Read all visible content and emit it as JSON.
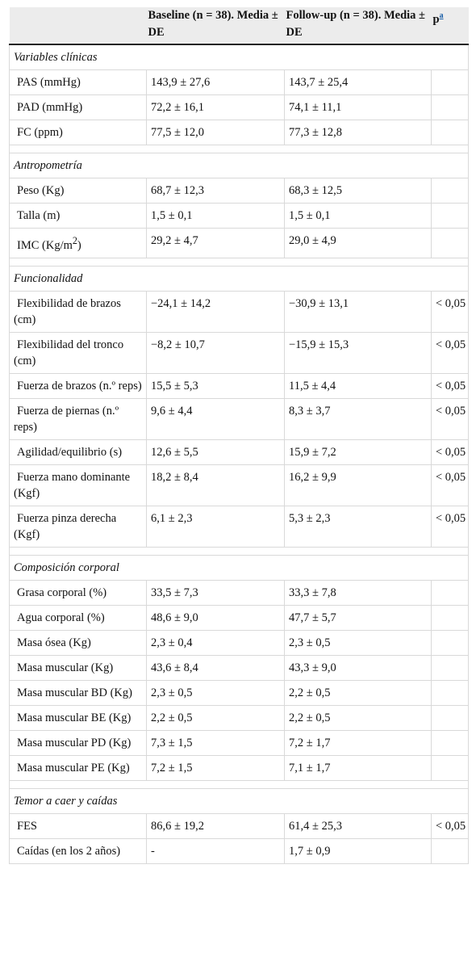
{
  "header": {
    "col1": "",
    "col2": "Baseline (n = 38). Media ± DE",
    "col3": "Follow-up (n = 38). Media ± DE",
    "col4_p": "p",
    "col4_sup": "a"
  },
  "sections": [
    {
      "title": "Variables clínicas",
      "rows": [
        {
          "label": "PAS (mmHg)",
          "baseline": "143,9 ± 27,6",
          "followup": "143,7 ± 25,4",
          "p": ""
        },
        {
          "label": "PAD (mmHg)",
          "baseline": "72,2 ± 16,1",
          "followup": "74,1 ± 11,1",
          "p": ""
        },
        {
          "label": "FC (ppm)",
          "baseline": "77,5 ± 12,0",
          "followup": "77,3 ± 12,8",
          "p": ""
        }
      ]
    },
    {
      "title": "Antropometría",
      "rows": [
        {
          "label": "Peso (Kg)",
          "baseline": "68,7 ± 12,3",
          "followup": "68,3 ± 12,5",
          "p": ""
        },
        {
          "label": "Talla (m)",
          "baseline": "1,5 ± 0,1",
          "followup": "1,5 ± 0,1",
          "p": ""
        },
        {
          "label": "IMC (Kg/m",
          "label_sup": "2",
          "label_suffix": ")",
          "baseline": "29,2 ± 4,7",
          "followup": "29,0 ± 4,9",
          "p": ""
        }
      ]
    },
    {
      "title": "Funcionalidad",
      "rows": [
        {
          "label": "Flexibilidad de brazos (cm)",
          "baseline": "−24,1 ± 14,2",
          "followup": "−30,9 ± 13,1",
          "p": "< 0,05"
        },
        {
          "label": "Flexibilidad del tronco (cm)",
          "baseline": "−8,2 ± 10,7",
          "followup": "−15,9 ± 15,3",
          "p": "< 0,05"
        },
        {
          "label": "Fuerza de brazos (n.º reps)",
          "baseline": "15,5 ± 5,3",
          "followup": "11,5 ± 4,4",
          "p": "< 0,05"
        },
        {
          "label": "Fuerza de piernas (n.º reps)",
          "baseline": "9,6 ± 4,4",
          "followup": "8,3 ± 3,7",
          "p": "< 0,05"
        },
        {
          "label": "Agilidad/equilibrio (s)",
          "baseline": "12,6 ± 5,5",
          "followup": "15,9 ± 7,2",
          "p": "< 0,05"
        },
        {
          "label": "Fuerza mano dominante (Kgf)",
          "baseline": "18,2 ± 8,4",
          "followup": "16,2 ± 9,9",
          "p": "< 0,05"
        },
        {
          "label": "Fuerza pinza derecha (Kgf)",
          "baseline": "6,1 ± 2,3",
          "followup": "5,3 ± 2,3",
          "p": "< 0,05"
        }
      ]
    },
    {
      "title": "Composición corporal",
      "rows": [
        {
          "label": "Grasa corporal (%)",
          "baseline": "33,5 ± 7,3",
          "followup": "33,3 ± 7,8",
          "p": ""
        },
        {
          "label": "Agua corporal (%)",
          "baseline": "48,6 ± 9,0",
          "followup": "47,7 ± 5,7",
          "p": ""
        },
        {
          "label": "Masa ósea (Kg)",
          "baseline": "2,3 ± 0,4",
          "followup": "2,3 ± 0,5",
          "p": ""
        },
        {
          "label": "Masa muscular (Kg)",
          "baseline": "43,6 ± 8,4",
          "followup": "43,3 ± 9,0",
          "p": ""
        },
        {
          "label": "Masa muscular BD (Kg)",
          "baseline": "2,3 ± 0,5",
          "followup": "2,2 ± 0,5",
          "p": ""
        },
        {
          "label": "Masa muscular BE (Kg)",
          "baseline": "2,2 ± 0,5",
          "followup": "2,2 ± 0,5",
          "p": ""
        },
        {
          "label": "Masa muscular PD (Kg)",
          "baseline": "7,3 ± 1,5",
          "followup": "7,2 ± 1,7",
          "p": ""
        },
        {
          "label": "Masa muscular PE (Kg)",
          "baseline": "7,2 ± 1,5",
          "followup": "7,1 ± 1,7",
          "p": ""
        }
      ]
    },
    {
      "title": "Temor a caer y caídas",
      "rows": [
        {
          "label": "FES",
          "baseline": "86,6 ± 19,2",
          "followup": "61,4 ± 25,3",
          "p": "< 0,05"
        },
        {
          "label": "Caídas (en los 2 años)",
          "baseline": "-",
          "followup": "1,7 ± 0,9",
          "p": ""
        }
      ]
    }
  ]
}
